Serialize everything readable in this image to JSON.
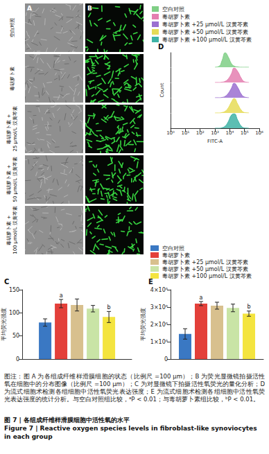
{
  "figure": {
    "panel_A": "A",
    "panel_B": "B",
    "image_rows": [
      [
        "空白对照"
      ],
      [
        "毒胡萝卜素"
      ],
      [
        "毒胡萝卜素 +",
        "25 μmol/L 汉黄芩素"
      ],
      [
        "毒胡萝卜素 +",
        "50 μmol/L 汉黄芩素"
      ],
      [
        "毒胡萝卜素 +",
        "100 μmol/L 汉黄芩素"
      ]
    ],
    "caption": "图注：图 A 为各组成纤维样滑膜细胞的状态（比例尺 =100 μm）；B 为荧光显微镜拍摄活性氧在细胞中的分布图像（比例尺 =100 μm）；C 为对显微镜下拍摄活性氧荧光的量化分析；D 为流式细胞术检测各组细胞中活性氧荧光表达强度；E 为流式细胞术检测各组细胞中活性氧荧光表达强度的统计分析。与空白对照组比较，ᵃP < 0.01；与毒胡萝卜素组比较，ᵇP < 0.01。",
    "title_zh": "图 7 | 各组成纤维样滑膜细胞中活性氧的水平",
    "title_en": "Figure 7 | Reactive oxygen species levels in fibroblast-like synoviocytes in each group"
  },
  "chart_data": [
    {
      "type": "bar",
      "title": "C",
      "y_label": "平均荧光强度",
      "categories": [
        null
      ],
      "ylim": [
        0,
        150
      ],
      "yticks": [
        0,
        50,
        100,
        150
      ],
      "grid": false,
      "legend": "top-right",
      "series": [
        {
          "name": "空白对照",
          "color": "#3a78c3",
          "values": [
            79
          ],
          "errors": [
            8
          ]
        },
        {
          "name": "毒胡萝卜素",
          "color": "#e3403a",
          "values": [
            120
          ],
          "errors": [
            9
          ],
          "annotation": "a"
        },
        {
          "name": "毒胡萝卜素 +25 μmol/L 汉黄芩素",
          "color": "#d8c08e",
          "values": [
            117
          ],
          "errors": [
            13
          ]
        },
        {
          "name": "毒胡萝卜素 +50 μmol/L 汉黄芩素",
          "color": "#c9e4a6",
          "values": [
            109
          ],
          "errors": [
            7
          ]
        },
        {
          "name": "毒胡萝卜素 +100 μmol/L 汉黄芩素",
          "color": "#f4e43f",
          "values": [
            91
          ],
          "errors": [
            12
          ],
          "annotation": "b"
        }
      ]
    },
    {
      "type": "line",
      "title": "D",
      "x_label": "FITC-A",
      "y_label": "Count",
      "log": "x",
      "legend": "top",
      "xlim": [
        1,
        1000000
      ],
      "xticks": [
        {
          "value": 1,
          "label": "10⁰"
        },
        {
          "value": 10,
          "label": "10¹"
        },
        {
          "value": 100,
          "label": "10²"
        },
        {
          "value": 1000,
          "label": "10³"
        },
        {
          "value": 10000,
          "label": "10⁴"
        },
        {
          "value": 100000,
          "label": "10⁵"
        },
        {
          "value": 1000000,
          "label": "10⁶"
        }
      ],
      "ylim": [
        0,
        100
      ],
      "tick_labels": "x",
      "x": [
        1000,
        2000,
        3000,
        5000,
        8000,
        13000,
        20000,
        35000,
        60000,
        100000,
        200000
      ],
      "series": [
        {
          "name": "空白对照",
          "color": "#7fcf86",
          "values": [
            0,
            8,
            45,
            100,
            70,
            25,
            8,
            2,
            0,
            0,
            0
          ]
        },
        {
          "name": "毒胡萝卜素",
          "color": "#e47fb0",
          "values": [
            0,
            0,
            2,
            8,
            25,
            60,
            100,
            75,
            30,
            5,
            0
          ]
        },
        {
          "name": "毒胡萝卜素 +25 μmol/L 汉黄芩素",
          "color": "#9b6fd0",
          "values": [
            0,
            0,
            2,
            10,
            30,
            65,
            100,
            70,
            25,
            5,
            0
          ]
        },
        {
          "name": "毒胡萝卜素 +50 μmol/L 汉黄芩素",
          "color": "#e6dc57",
          "values": [
            0,
            0,
            3,
            12,
            35,
            75,
            100,
            60,
            20,
            3,
            0
          ]
        },
        {
          "name": "毒胡萝卜素 +100 μmol/L 汉黄芩素",
          "color": "#3fb3a6",
          "values": [
            0,
            0,
            3,
            15,
            45,
            90,
            100,
            55,
            15,
            2,
            0
          ]
        }
      ]
    },
    {
      "type": "bar",
      "title": "E",
      "y_label": "平均荧光强度",
      "categories": [
        null
      ],
      "ylim": [
        0,
        4000000
      ],
      "yticks": [
        0,
        {
          "value": 1000000,
          "label": "1×10⁶"
        },
        {
          "value": 2000000,
          "label": "2×10⁶"
        },
        {
          "value": 3000000,
          "label": "3×10⁶"
        },
        {
          "value": 4000000,
          "label": "4×10⁶"
        }
      ],
      "grid": false,
      "series": [
        {
          "name": "空白对照",
          "color": "#3a78c3",
          "values": [
            1450000
          ],
          "errors": [
            300000
          ]
        },
        {
          "name": "毒胡萝卜素",
          "color": "#e3403a",
          "values": [
            3200000
          ],
          "errors": [
            120000
          ],
          "annotation": "a"
        },
        {
          "name": "毒胡萝卜素 +25 μmol/L 汉黄芩素",
          "color": "#d8c08e",
          "values": [
            3080000
          ],
          "errors": [
            200000
          ]
        },
        {
          "name": "毒胡萝卜素 +50 μmol/L 汉黄芩素",
          "color": "#c9e4a6",
          "values": [
            2950000
          ],
          "errors": [
            220000
          ]
        },
        {
          "name": "毒胡萝卜素 +100 μmol/L 汉黄芩素",
          "color": "#f4e43f",
          "values": [
            2620000
          ],
          "errors": [
            150000
          ],
          "annotation": "b"
        }
      ]
    }
  ]
}
